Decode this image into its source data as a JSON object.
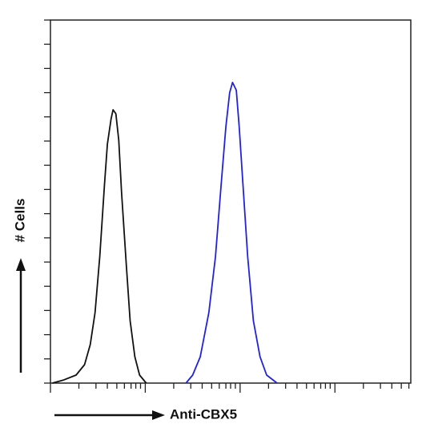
{
  "chart_data": {
    "type": "line",
    "xlabel": "Anti-CBX5",
    "ylabel": "# Cells",
    "xscale": "log",
    "xlim": [
      0,
      3.8
    ],
    "xticks": [
      0,
      1,
      2,
      3
    ],
    "xminorticks": [
      0.3,
      0.48,
      0.6,
      0.7,
      0.78,
      0.85,
      0.9,
      0.95,
      1.3,
      1.48,
      1.6,
      1.7,
      1.78,
      1.85,
      1.9,
      1.95,
      2.3,
      2.48,
      2.6,
      2.7,
      2.78,
      2.85,
      2.9,
      2.95,
      3.3,
      3.48,
      3.6,
      3.7,
      3.78
    ],
    "ylim": [
      0,
      15
    ],
    "yticks": [
      0,
      1,
      2,
      3,
      4,
      5,
      6,
      7,
      8,
      9,
      10,
      11,
      12,
      13,
      14,
      15
    ],
    "series": [
      {
        "color": "#111111",
        "x": [
          0.02,
          0.14,
          0.27,
          0.36,
          0.42,
          0.47,
          0.52,
          0.57,
          0.6,
          0.64,
          0.66,
          0.69,
          0.72,
          0.75,
          0.8,
          0.84,
          0.89,
          0.94,
          1.01
        ],
        "values": [
          0,
          0.13,
          0.33,
          0.76,
          1.59,
          2.91,
          5.23,
          8.21,
          9.87,
          10.93,
          11.29,
          11.13,
          10.04,
          7.88,
          4.9,
          2.58,
          1.09,
          0.33,
          0
        ]
      },
      {
        "color": "#2222dd",
        "x": [
          1.43,
          1.5,
          1.58,
          1.67,
          1.74,
          1.8,
          1.85,
          1.89,
          1.92,
          1.96,
          1.99,
          2.03,
          2.08,
          2.14,
          2.21,
          2.28,
          2.39
        ],
        "values": [
          0,
          0.33,
          1.09,
          2.91,
          5.23,
          8.21,
          10.6,
          12.0,
          12.42,
          12.1,
          10.6,
          8.21,
          5.23,
          2.58,
          1.09,
          0.33,
          0
        ]
      }
    ]
  }
}
